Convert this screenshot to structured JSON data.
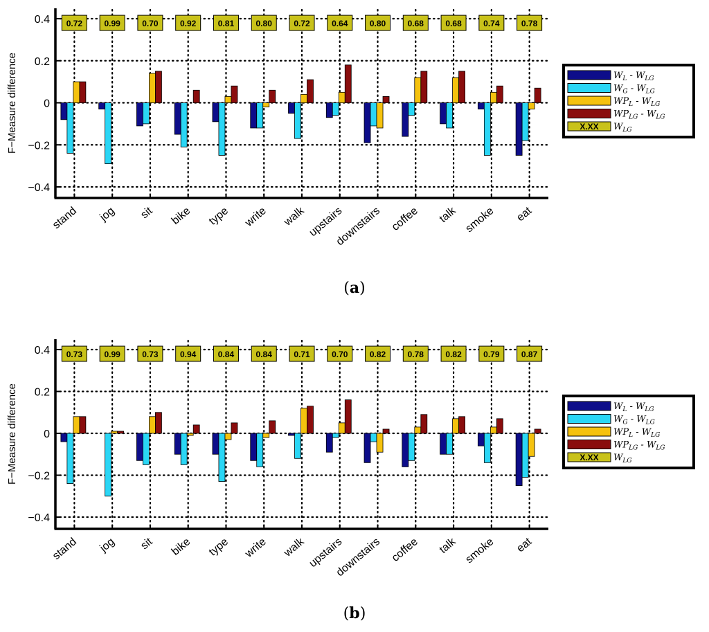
{
  "colors": {
    "WL_WLG": "#0d0d8a",
    "WG_WLG": "#2ad6f5",
    "WPL_WLG": "#f5c20e",
    "WPLG_WLG": "#8a0d0d",
    "WLG_box": "#c9c21a"
  },
  "chart_data": [
    {
      "type": "bar",
      "caption": "a",
      "title": "",
      "xlabel": "",
      "ylabel": "F−Measure difference",
      "ylim": [
        -0.45,
        0.45
      ],
      "yticks": [
        -0.4,
        -0.2,
        0,
        0.2,
        0.4
      ],
      "ytick_labels": [
        "−0.4",
        "−0.2",
        "0",
        "0.2",
        "0.4"
      ],
      "grid": true,
      "legend_position": "right",
      "categories": [
        "stand",
        "jog",
        "sit",
        "bike",
        "type",
        "write",
        "walk",
        "upstairs",
        "downstairs",
        "coffee",
        "talk",
        "smoke",
        "eat"
      ],
      "series": [
        {
          "name": "W_L - W_LG",
          "color_key": "WL_WLG",
          "values": [
            -0.08,
            -0.03,
            -0.11,
            -0.15,
            -0.09,
            -0.12,
            -0.05,
            -0.07,
            -0.19,
            -0.16,
            -0.1,
            -0.03,
            -0.25
          ]
        },
        {
          "name": "W_G - W_LG",
          "color_key": "WG_WLG",
          "values": [
            -0.24,
            -0.29,
            -0.1,
            -0.21,
            -0.25,
            -0.12,
            -0.17,
            -0.06,
            -0.11,
            -0.06,
            -0.12,
            -0.25,
            -0.18
          ]
        },
        {
          "name": "WP_L - W_LG",
          "color_key": "WPL_WLG",
          "values": [
            0.1,
            0.0,
            0.14,
            0.0,
            0.03,
            -0.02,
            0.04,
            0.05,
            -0.12,
            0.12,
            0.12,
            0.05,
            -0.03
          ]
        },
        {
          "name": "WP_LG - W_LG",
          "color_key": "WPLG_WLG",
          "values": [
            0.1,
            0.0,
            0.15,
            0.06,
            0.08,
            0.06,
            0.11,
            0.18,
            0.03,
            0.15,
            0.15,
            0.08,
            0.07
          ]
        }
      ],
      "wlg_values": [
        "0.72",
        "0.99",
        "0.70",
        "0.92",
        "0.81",
        "0.80",
        "0.72",
        "0.64",
        "0.80",
        "0.68",
        "0.68",
        "0.74",
        "0.78"
      ],
      "wlg_level": 0.38
    },
    {
      "type": "bar",
      "caption": "b",
      "title": "",
      "xlabel": "",
      "ylabel": "F−Measure difference",
      "ylim": [
        -0.45,
        0.45
      ],
      "yticks": [
        -0.4,
        -0.2,
        0,
        0.2,
        0.4
      ],
      "ytick_labels": [
        "−0.4",
        "−0.2",
        "0",
        "0.2",
        "0.4"
      ],
      "grid": true,
      "legend_position": "right",
      "categories": [
        "stand",
        "jog",
        "sit",
        "bike",
        "type",
        "write",
        "walk",
        "upstairs",
        "downstairs",
        "coffee",
        "talk",
        "smoke",
        "eat"
      ],
      "series": [
        {
          "name": "W_L - W_LG",
          "color_key": "WL_WLG",
          "values": [
            -0.04,
            0.0,
            -0.13,
            -0.1,
            -0.1,
            -0.13,
            -0.01,
            -0.09,
            -0.14,
            -0.16,
            -0.1,
            -0.06,
            -0.25
          ]
        },
        {
          "name": "W_G - W_LG",
          "color_key": "WG_WLG",
          "values": [
            -0.24,
            -0.3,
            -0.15,
            -0.15,
            -0.23,
            -0.16,
            -0.12,
            -0.02,
            -0.04,
            -0.13,
            -0.1,
            -0.14,
            -0.21
          ]
        },
        {
          "name": "WP_L - W_LG",
          "color_key": "WPL_WLG",
          "values": [
            0.08,
            0.01,
            0.08,
            -0.01,
            -0.03,
            -0.02,
            0.12,
            0.05,
            -0.09,
            0.03,
            0.07,
            0.03,
            -0.11
          ]
        },
        {
          "name": "WP_LG - W_LG",
          "color_key": "WPLG_WLG",
          "values": [
            0.08,
            0.01,
            0.1,
            0.04,
            0.05,
            0.06,
            0.13,
            0.16,
            0.02,
            0.09,
            0.08,
            0.07,
            0.02
          ]
        }
      ],
      "wlg_values": [
        "0.73",
        "0.99",
        "0.73",
        "0.94",
        "0.84",
        "0.84",
        "0.71",
        "0.70",
        "0.82",
        "0.78",
        "0.82",
        "0.79",
        "0.87"
      ],
      "wlg_level": 0.38
    }
  ],
  "legend": {
    "items": [
      {
        "main1": "W",
        "sub1": "L",
        "mid": " - ",
        "main2": "W",
        "sub2": "LG",
        "color_key": "WL_WLG"
      },
      {
        "main1": "W",
        "sub1": "G",
        "mid": " - ",
        "main2": "W",
        "sub2": "LG",
        "color_key": "WG_WLG"
      },
      {
        "main1": "WP",
        "sub1": "L",
        "mid": " - ",
        "main2": "W",
        "sub2": "LG",
        "color_key": "WPL_WLG"
      },
      {
        "main1": "WP",
        "sub1": "LG",
        "mid": " - ",
        "main2": "W",
        "sub2": "LG",
        "color_key": "WPLG_WLG"
      }
    ],
    "wlg_item": {
      "box_text": "X.XX",
      "main": "W",
      "sub": "LG",
      "color_key": "WLG_box"
    }
  },
  "captions": [
    "a",
    "b"
  ]
}
